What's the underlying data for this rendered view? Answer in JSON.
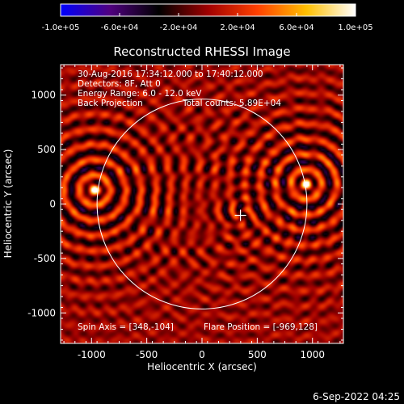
{
  "chart_data": {
    "type": "heatmap",
    "title": "Reconstructed RHESSI Image",
    "xlabel": "Heliocentric X (arcsec)",
    "ylabel": "Heliocentric Y (arcsec)",
    "xlim": [
      -1280,
      1280
    ],
    "ylim": [
      -1280,
      1280
    ],
    "x_ticks": [
      -1000,
      -500,
      0,
      500,
      1000
    ],
    "y_ticks": [
      -1000,
      -500,
      0,
      500,
      1000
    ],
    "colorbar": {
      "range": [
        -100000,
        100000
      ],
      "tick_values": [
        -100000,
        -60000,
        -20000,
        20000,
        60000,
        100000
      ],
      "tick_labels": [
        "-1.0e+05",
        "-6.0e+04",
        "-2.0e+04",
        "2.0e+04",
        "6.0e+04",
        "1.0e+05"
      ],
      "colormap": [
        "#0000ff",
        "#500080",
        "#000000",
        "#a00000",
        "#ff4000",
        "#ffc000",
        "#ffffff"
      ]
    },
    "annotations": {
      "time_range": "30-Aug-2016 17:34:12.000 to 17:40:12.000",
      "detectors": "Detectors: 8F, Att 0",
      "energy_range": "Energy Range: 6.0 - 12.0 keV",
      "method": "Back Projection",
      "total_counts": "Total counts: 5.89E+04",
      "spin_axis": "Spin Axis = [348,-104]",
      "flare_position": "Flare Position = [-969,128]"
    },
    "sources": [
      {
        "x": -969,
        "y": 128,
        "intensity": 100000
      },
      {
        "x": 940,
        "y": 180,
        "intensity": 98000
      }
    ],
    "solar_limb_radius": 950,
    "spin_axis_marker": {
      "x": 348,
      "y": -104
    }
  },
  "footer": {
    "date": "6-Sep-2022 04:25"
  }
}
